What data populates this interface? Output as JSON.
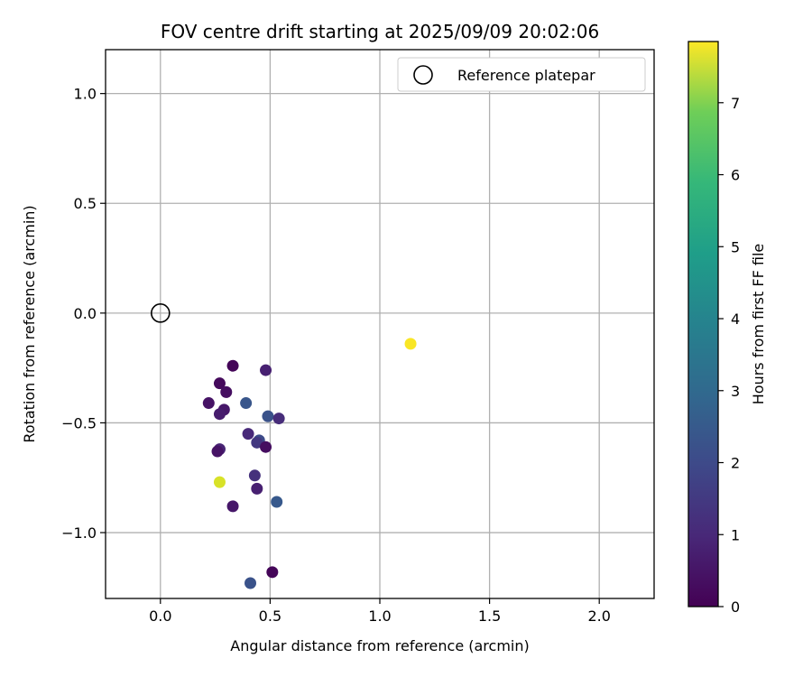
{
  "chart_data": {
    "type": "scatter",
    "title": "FOV centre drift starting at 2025/09/09 20:02:06",
    "xlabel": "Angular distance from reference (arcmin)",
    "ylabel": "Rotation from reference (arcmin)",
    "xlim": [
      -0.25,
      2.25
    ],
    "ylim": [
      -1.3,
      1.2
    ],
    "xticks": [
      0.0,
      0.5,
      1.0,
      1.5,
      2.0
    ],
    "xtick_labels": [
      "0.0",
      "0.5",
      "1.0",
      "1.5",
      "2.0"
    ],
    "yticks": [
      1.0,
      0.5,
      0.0,
      -0.5,
      -1.0
    ],
    "ytick_labels": [
      "1.0",
      "0.5",
      "0.0",
      "−0.5",
      "−1.0"
    ],
    "grid": true,
    "legend": {
      "position": "top-right",
      "entries": [
        "Reference platepar"
      ]
    },
    "reference": {
      "x": 0.0,
      "y": 0.0,
      "marker": "open-circle"
    },
    "colorbar": {
      "label": "Hours from first FF file",
      "colormap": "viridis",
      "range": [
        0,
        7.85
      ],
      "ticks": [
        0,
        1,
        2,
        3,
        4,
        5,
        6,
        7
      ],
      "tick_labels": [
        "0",
        "1",
        "2",
        "3",
        "4",
        "5",
        "6",
        "7"
      ]
    },
    "points": [
      {
        "x": 0.33,
        "y": -0.24,
        "hours": 0.1
      },
      {
        "x": 0.48,
        "y": -0.26,
        "hours": 0.7
      },
      {
        "x": 0.27,
        "y": -0.32,
        "hours": 0.2
      },
      {
        "x": 0.3,
        "y": -0.36,
        "hours": 0.3
      },
      {
        "x": 0.22,
        "y": -0.41,
        "hours": 0.4
      },
      {
        "x": 0.39,
        "y": -0.41,
        "hours": 2.1
      },
      {
        "x": 0.29,
        "y": -0.44,
        "hours": 0.5
      },
      {
        "x": 0.27,
        "y": -0.46,
        "hours": 0.6
      },
      {
        "x": 0.49,
        "y": -0.47,
        "hours": 2.0
      },
      {
        "x": 0.54,
        "y": -0.48,
        "hours": 1.0
      },
      {
        "x": 0.4,
        "y": -0.55,
        "hours": 0.9
      },
      {
        "x": 0.45,
        "y": -0.58,
        "hours": 1.8
      },
      {
        "x": 0.44,
        "y": -0.59,
        "hours": 1.3
      },
      {
        "x": 0.48,
        "y": -0.61,
        "hours": 0.3
      },
      {
        "x": 0.27,
        "y": -0.62,
        "hours": 0.8
      },
      {
        "x": 0.26,
        "y": -0.63,
        "hours": 0.4
      },
      {
        "x": 0.43,
        "y": -0.74,
        "hours": 1.1
      },
      {
        "x": 0.27,
        "y": -0.77,
        "hours": 7.4
      },
      {
        "x": 0.44,
        "y": -0.8,
        "hours": 0.7
      },
      {
        "x": 0.53,
        "y": -0.86,
        "hours": 2.2
      },
      {
        "x": 0.33,
        "y": -0.88,
        "hours": 0.5
      },
      {
        "x": 0.51,
        "y": -1.18,
        "hours": 0.1
      },
      {
        "x": 0.41,
        "y": -1.23,
        "hours": 2.0
      },
      {
        "x": 1.14,
        "y": -0.14,
        "hours": 7.8
      }
    ]
  }
}
